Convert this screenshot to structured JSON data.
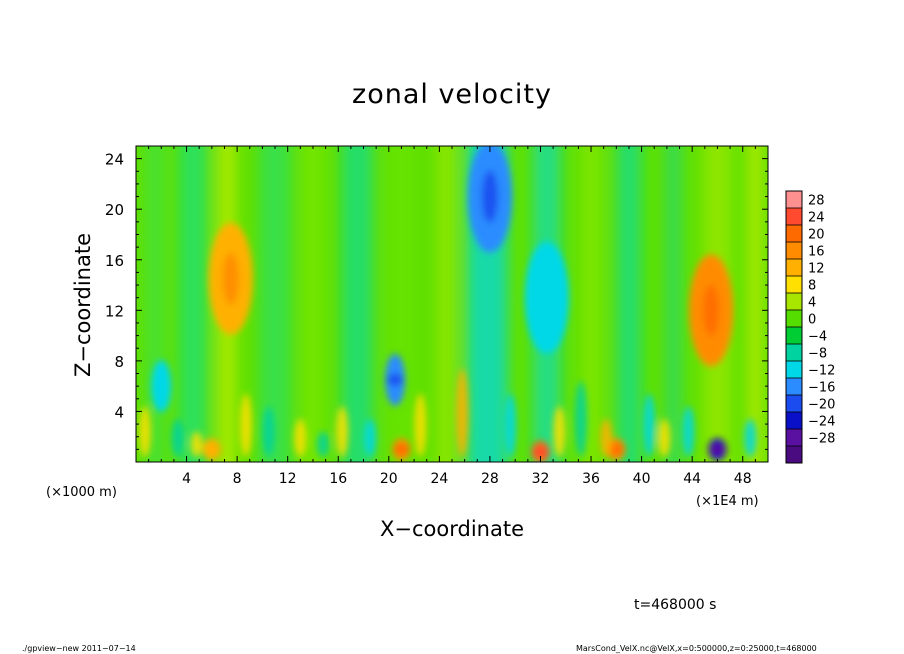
{
  "chart_data": {
    "type": "heatmap",
    "title": "zonal velocity",
    "xlabel": "X−coordinate",
    "ylabel": "Z−coordinate",
    "x_axis_units_left": "(×1000 m)",
    "x_axis_units_right": "(×1E4 m)",
    "xlim": [
      0,
      50
    ],
    "ylim": [
      0,
      25
    ],
    "x_ticks": [
      "4",
      "8",
      "12",
      "16",
      "20",
      "24",
      "28",
      "32",
      "36",
      "40",
      "44",
      "48"
    ],
    "y_ticks": [
      "4",
      "8",
      "12",
      "16",
      "20",
      "24"
    ],
    "colorbar_levels": [
      "28",
      "24",
      "20",
      "16",
      "12",
      "8",
      "4",
      "0",
      "−4",
      "−8",
      "−12",
      "−16",
      "−20",
      "−24",
      "−28"
    ],
    "colorbar_colors": [
      "#ff9090",
      "#ff4a30",
      "#ff6a00",
      "#ff8c00",
      "#ffb000",
      "#ffe000",
      "#a8e600",
      "#55dd00",
      "#00cc33",
      "#00d2a0",
      "#00d8e8",
      "#2a8cff",
      "#1a4cf0",
      "#0a10c8",
      "#5a10a0",
      "#4a0a80"
    ],
    "features": [
      {
        "x": 7.5,
        "z": 14.5,
        "value": 14,
        "label": "positive core"
      },
      {
        "x": 45.5,
        "z": 12,
        "value": 16,
        "label": "positive core"
      },
      {
        "x": 28,
        "z": 21,
        "value": -16,
        "label": "negative core"
      },
      {
        "x": 32.5,
        "z": 13,
        "value": -12,
        "label": "negative core"
      },
      {
        "x": 32,
        "z": 0.8,
        "value": 22,
        "label": "near-surface peak"
      },
      {
        "x": 38,
        "z": 1,
        "value": 16,
        "label": "near-surface peak"
      },
      {
        "x": 46,
        "z": 1,
        "value": -22,
        "label": "near-surface trough"
      },
      {
        "x": 21,
        "z": 1,
        "value": 18,
        "label": "near-surface peak"
      },
      {
        "x": 6,
        "z": 1,
        "value": 12,
        "label": "near-surface peak"
      },
      {
        "x": 20.5,
        "z": 6.5,
        "value": -14,
        "label": "low-level trough"
      },
      {
        "x": 2,
        "z": 6,
        "value": -12,
        "label": "low-level trough"
      }
    ]
  },
  "footer": {
    "time_label": "t=468000 s",
    "left_note": "./gpview−new   2011−07−14",
    "right_note": "MarsCond_VelX.nc@VelX,x=0:500000,z=0:25000,t=468000"
  }
}
